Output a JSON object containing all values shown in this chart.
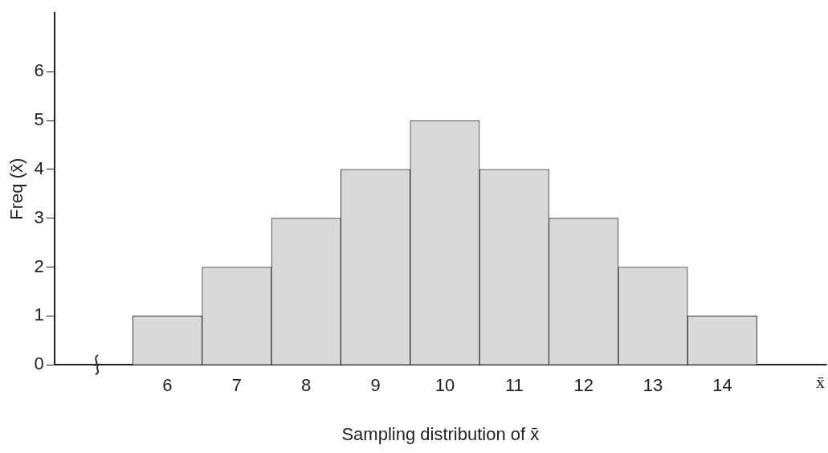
{
  "chart_data": {
    "type": "histogram",
    "xlabel": "Sampling distribution of x̄",
    "ylabel": "Freq (x̄)",
    "bins": [
      5.5,
      6.5,
      7.5,
      8.5,
      9.5,
      10.5,
      11.5,
      12.5,
      13.5,
      14.5
    ],
    "values": [
      1,
      2,
      3,
      4,
      5,
      4,
      3,
      2,
      1
    ],
    "color": "#d9d9d9",
    "xlim": [
      4.37,
      15.5
    ],
    "xticks": [
      6,
      7,
      8,
      9,
      10,
      11,
      12,
      13,
      14
    ],
    "ylim": [
      0,
      7.2
    ],
    "yticks": [
      0,
      1,
      2,
      3,
      4,
      5,
      6
    ],
    "annotations": [
      "x̄"
    ],
    "grid": false,
    "legend": false
  }
}
